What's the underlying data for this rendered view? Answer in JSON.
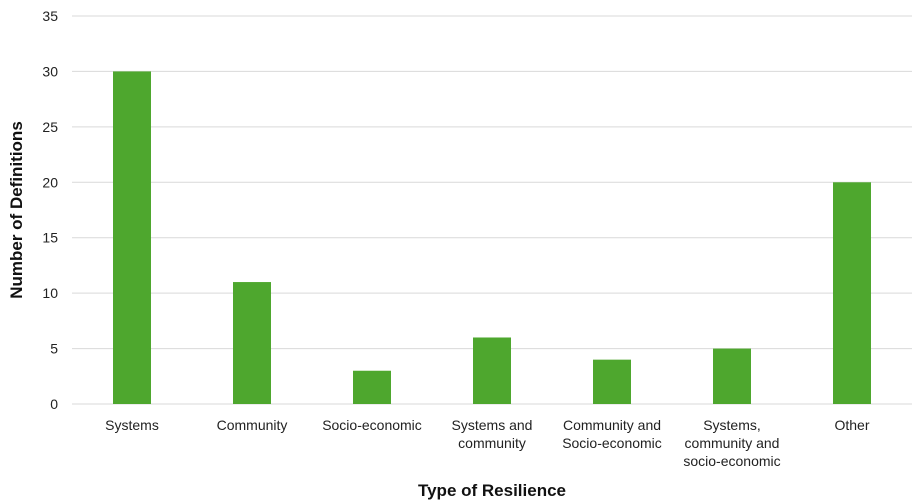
{
  "chart_data": {
    "type": "bar",
    "title": "",
    "xlabel": "Type of Resilience",
    "ylabel": "Number of Definitions",
    "ylim": [
      0,
      35
    ],
    "yticks": [
      0,
      5,
      10,
      15,
      20,
      25,
      30,
      35
    ],
    "grid": true,
    "legend": "none",
    "bar_color": "#4ea72e",
    "categories": [
      [
        "Systems"
      ],
      [
        "Community"
      ],
      [
        "Socio-economic"
      ],
      [
        "Systems and",
        "community"
      ],
      [
        "Community and",
        "Socio-economic"
      ],
      [
        "Systems,",
        "community and",
        "socio-economic"
      ],
      [
        "Other"
      ]
    ],
    "values": [
      30,
      11,
      3,
      6,
      4,
      5,
      20
    ]
  }
}
